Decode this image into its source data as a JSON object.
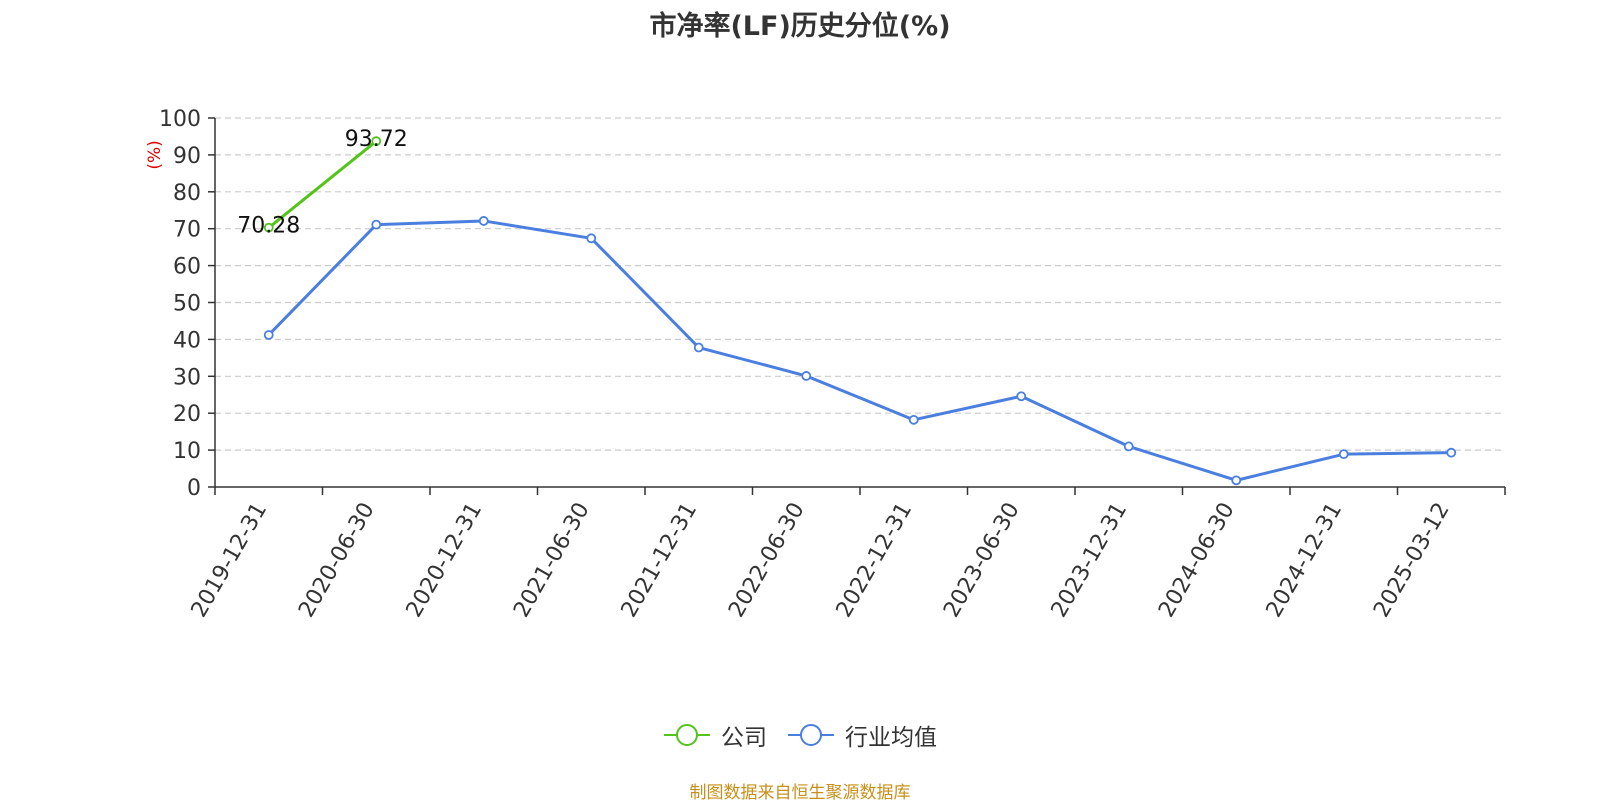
{
  "title": "市净率(LF)历史分位(%)",
  "source_note": "制图数据来自恒生聚源数据库",
  "chart_data": {
    "type": "line",
    "title": "市净率(LF)历史分位(%)",
    "ylabel": "(%)",
    "xlabel": "",
    "ylim": [
      0,
      100
    ],
    "yticks": [
      0,
      10,
      20,
      30,
      40,
      50,
      60,
      70,
      80,
      90,
      100
    ],
    "grid": true,
    "legend_position": "bottom",
    "categories": [
      "2019-12-31",
      "2020-06-30",
      "2020-12-31",
      "2021-06-30",
      "2021-12-31",
      "2022-06-30",
      "2022-12-31",
      "2023-06-30",
      "2023-12-31",
      "2024-06-30",
      "2024-12-31",
      "2025-03-12"
    ],
    "series": [
      {
        "name": "公司",
        "color": "#52c41a",
        "values": [
          70.28,
          93.72,
          null,
          null,
          null,
          null,
          null,
          null,
          null,
          null,
          null,
          null
        ],
        "data_labels": [
          "70.28",
          "93.72",
          null,
          null,
          null,
          null,
          null,
          null,
          null,
          null,
          null,
          null
        ]
      },
      {
        "name": "行业均值",
        "color": "#4a7fe0",
        "values": [
          41.2,
          71.1,
          72.1,
          67.4,
          37.8,
          30.1,
          18.2,
          24.6,
          11.0,
          1.8,
          8.9,
          9.3
        ],
        "data_labels": null
      }
    ]
  }
}
